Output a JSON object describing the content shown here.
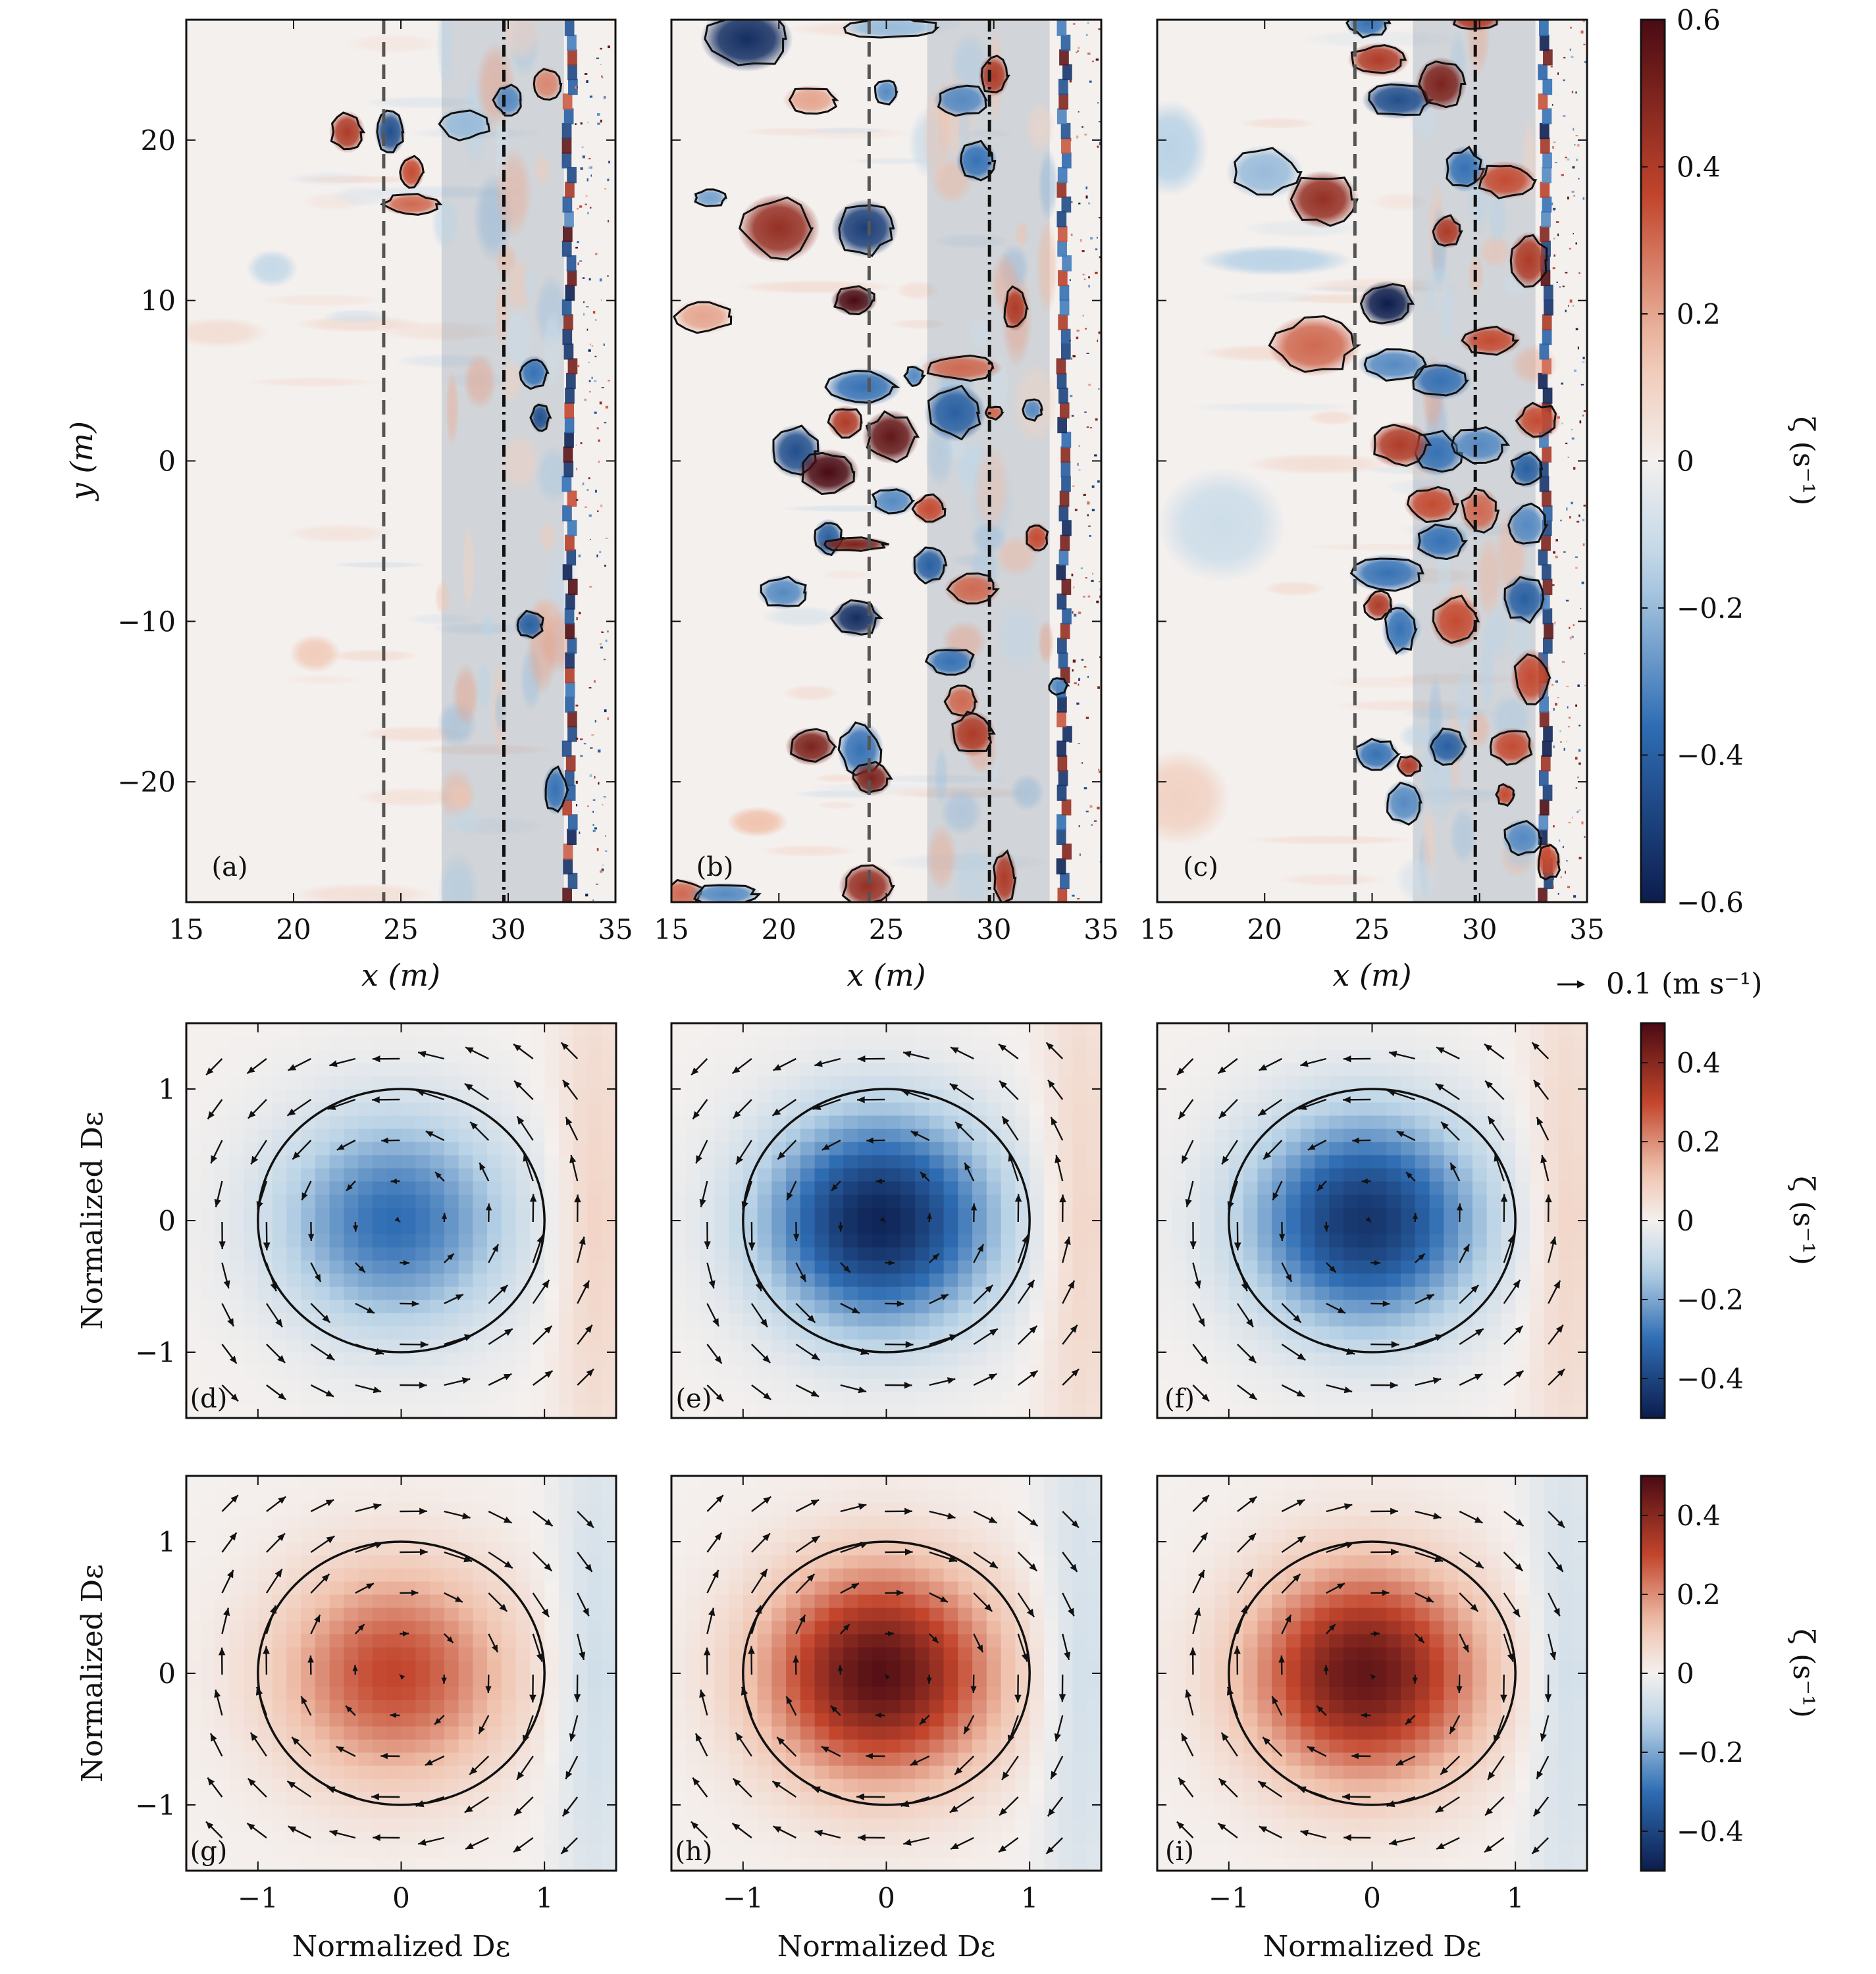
{
  "colors": {
    "neg_dark": "#0c1d4d",
    "neg_mid": "#2f6db3",
    "neg_light": "#b9d3e6",
    "zero": "#f4f0ee",
    "pos_light": "#f0c3ae",
    "pos_mid": "#c2452c",
    "pos_dark": "#4a0b13",
    "contour": "#111111",
    "dashed_line": "#555555",
    "surfzone_shade": "rgba(120,140,160,0.28)"
  },
  "chart_data": [
    {
      "type": "heatmap",
      "panel": "(a)",
      "xlabel": "x (m)",
      "ylabel": "y (m)",
      "xlim": [
        15,
        35
      ],
      "ylim": [
        -27.5,
        27.5
      ],
      "xticks": [
        "15",
        "20",
        "25",
        "30",
        "35"
      ],
      "yticks": [
        "−20",
        "−10",
        "0",
        "10",
        "20"
      ],
      "vertical_lines": {
        "dashed_x": 24.2,
        "dashdot_x": 29.8
      },
      "shaded_x_range": [
        26.9,
        32.6
      ],
      "eddies": [
        [
          22.5,
          20.5,
          0.7,
          1.1,
          0.4
        ],
        [
          24.5,
          20.5,
          0.6,
          1.2,
          -0.45
        ],
        [
          25.5,
          18,
          0.5,
          0.9,
          0.35
        ],
        [
          25.5,
          16,
          1.2,
          0.6,
          0.3
        ],
        [
          28,
          21,
          1.1,
          0.9,
          -0.2
        ],
        [
          30,
          22.5,
          0.6,
          0.9,
          -0.3
        ],
        [
          31.8,
          23.5,
          0.6,
          0.9,
          0.25
        ],
        [
          31.2,
          5.5,
          0.6,
          0.9,
          -0.35
        ],
        [
          31.5,
          2.7,
          0.4,
          0.8,
          -0.45
        ],
        [
          31,
          -10.2,
          0.6,
          0.8,
          -0.4
        ],
        [
          32.2,
          -20.5,
          0.5,
          1.3,
          -0.35
        ],
        [
          19,
          12,
          1,
          1,
          -0.12
        ],
        [
          21,
          -12,
          1,
          1,
          0.12
        ],
        [
          16.5,
          8,
          2,
          0.8,
          0.06
        ]
      ]
    },
    {
      "type": "heatmap",
      "panel": "(b)",
      "xlabel": "x (m)",
      "ylabel": "",
      "xlim": [
        15,
        35
      ],
      "ylim": [
        -27.5,
        27.5
      ],
      "xticks": [
        "15",
        "20",
        "25",
        "30",
        "35"
      ],
      "yticks": [],
      "vertical_lines": {
        "dashed_x": 24.2,
        "dashdot_x": 29.8
      },
      "shaded_x_range": [
        26.9,
        32.6
      ],
      "eddies": [
        [
          18.5,
          26.3,
          1.8,
          1.7,
          -0.55
        ],
        [
          16.5,
          9,
          1.2,
          0.9,
          0.2
        ],
        [
          16.8,
          16.4,
          0.7,
          0.5,
          -0.25
        ],
        [
          20,
          14.5,
          1.6,
          1.8,
          0.45
        ],
        [
          24,
          14.5,
          1.3,
          1.5,
          -0.5
        ],
        [
          23.5,
          10,
          0.9,
          0.8,
          0.6
        ],
        [
          20.8,
          0.6,
          1,
          1.4,
          -0.45
        ],
        [
          22.3,
          -0.7,
          1.2,
          1.2,
          0.6
        ],
        [
          23.9,
          4.6,
          1.5,
          1,
          -0.35
        ],
        [
          23.1,
          2.4,
          0.7,
          0.9,
          0.4
        ],
        [
          25.2,
          1.5,
          1.1,
          1.4,
          0.55
        ],
        [
          28.2,
          3,
          1.2,
          1.5,
          -0.4
        ],
        [
          26.3,
          5.3,
          0.4,
          0.6,
          -0.3
        ],
        [
          28.5,
          5.8,
          1.6,
          0.7,
          0.3
        ],
        [
          23.6,
          -9.8,
          1,
          1,
          -0.55
        ],
        [
          21.5,
          -17.8,
          1,
          1,
          0.5
        ],
        [
          23.8,
          -18,
          0.9,
          1.5,
          -0.35
        ],
        [
          20.2,
          -8.2,
          1,
          0.9,
          -0.3
        ],
        [
          22.3,
          -4.8,
          0.6,
          1,
          -0.4
        ],
        [
          23.5,
          -5.2,
          1.4,
          0.4,
          0.5
        ],
        [
          25.3,
          -2.5,
          0.9,
          0.8,
          -0.3
        ],
        [
          27,
          -3,
          0.7,
          0.8,
          0.35
        ],
        [
          27,
          -6.5,
          0.7,
          1,
          -0.4
        ],
        [
          29,
          -8,
          1.1,
          0.9,
          0.3
        ],
        [
          28,
          -12.5,
          1,
          0.8,
          -0.35
        ],
        [
          28.5,
          -15,
          0.7,
          0.9,
          0.3
        ],
        [
          29,
          -17,
          0.9,
          1.2,
          0.4
        ],
        [
          24.3,
          -19.8,
          0.8,
          0.9,
          0.5
        ],
        [
          19,
          -22.5,
          1.2,
          0.8,
          0.15
        ],
        [
          24.1,
          -26.5,
          1.1,
          1.2,
          0.45
        ],
        [
          15.5,
          -27,
          0.9,
          0.8,
          0.3
        ],
        [
          17.5,
          -27,
          1.4,
          0.6,
          -0.3
        ],
        [
          30.5,
          -26,
          0.5,
          1.5,
          0.4
        ],
        [
          28.5,
          22.5,
          1.1,
          0.9,
          -0.3
        ],
        [
          30,
          24,
          0.6,
          1.1,
          0.4
        ],
        [
          29.2,
          18.7,
          0.8,
          1.1,
          -0.35
        ],
        [
          25.2,
          27,
          2,
          0.6,
          -0.2
        ],
        [
          31,
          9.5,
          0.5,
          1.2,
          0.4
        ],
        [
          30,
          3,
          0.4,
          0.4,
          0.3
        ],
        [
          31.8,
          3.2,
          0.4,
          0.6,
          -0.3
        ],
        [
          32,
          -4.8,
          0.5,
          0.8,
          0.35
        ],
        [
          33,
          -14,
          0.4,
          0.5,
          -0.3
        ],
        [
          21.5,
          22.5,
          1.1,
          0.8,
          0.2
        ],
        [
          25,
          23,
          0.5,
          0.7,
          -0.3
        ]
      ]
    },
    {
      "type": "heatmap",
      "panel": "(c)",
      "xlabel": "x (m)",
      "ylabel": "",
      "xlim": [
        15,
        35
      ],
      "ylim": [
        -27.5,
        27.5
      ],
      "xticks": [
        "15",
        "20",
        "25",
        "30",
        "35"
      ],
      "yticks": [],
      "vertical_lines": {
        "dashed_x": 24.2,
        "dashdot_x": 29.8
      },
      "shaded_x_range": [
        26.9,
        32.6
      ],
      "eddies": [
        [
          15.6,
          19.5,
          1.5,
          2.5,
          -0.15
        ],
        [
          22.7,
          16.3,
          1.4,
          1.5,
          0.45
        ],
        [
          20.5,
          12.5,
          3,
          0.8,
          -0.15
        ],
        [
          22.3,
          7.2,
          1.8,
          1.6,
          0.3
        ],
        [
          20,
          18,
          1.5,
          1.4,
          -0.2
        ],
        [
          25.7,
          9.8,
          1.1,
          1.2,
          -0.6
        ],
        [
          26,
          6,
          1.4,
          0.9,
          -0.3
        ],
        [
          25.3,
          25,
          1.2,
          0.9,
          0.4
        ],
        [
          26.2,
          22.5,
          1.4,
          1,
          -0.45
        ],
        [
          28.2,
          23.5,
          1,
          1.4,
          0.5
        ],
        [
          24.8,
          27.3,
          0.9,
          0.8,
          -0.35
        ],
        [
          29.8,
          27.5,
          1,
          0.6,
          0.4
        ],
        [
          29.3,
          18.2,
          0.8,
          1.2,
          -0.35
        ],
        [
          31.2,
          17.5,
          1.2,
          1,
          0.35
        ],
        [
          28.5,
          14.3,
          0.6,
          0.9,
          0.4
        ],
        [
          30.5,
          7.5,
          1.2,
          0.8,
          0.35
        ],
        [
          28.2,
          5,
          1.2,
          1,
          -0.35
        ],
        [
          32.3,
          12.5,
          0.8,
          1.5,
          0.4
        ],
        [
          28,
          0.5,
          1.1,
          1.2,
          -0.35
        ],
        [
          26.3,
          1,
          1.2,
          1.2,
          0.4
        ],
        [
          30,
          1,
          1.2,
          1,
          -0.3
        ],
        [
          32.7,
          2.5,
          0.9,
          1,
          0.35
        ],
        [
          32.2,
          -0.5,
          0.7,
          1,
          -0.4
        ],
        [
          27.8,
          -2.7,
          1.1,
          1,
          0.35
        ],
        [
          28.2,
          -5,
          1.1,
          1,
          -0.35
        ],
        [
          30,
          -3.1,
          0.8,
          1.2,
          0.3
        ],
        [
          32.2,
          -4,
          0.8,
          1.2,
          -0.3
        ],
        [
          25.7,
          -7,
          1.5,
          1,
          -0.35
        ],
        [
          25.3,
          -9,
          0.6,
          0.8,
          0.4
        ],
        [
          26.3,
          -10.5,
          0.7,
          1.4,
          -0.35
        ],
        [
          28.9,
          -10,
          1,
          1.4,
          0.35
        ],
        [
          32.1,
          -8.6,
          0.9,
          1.3,
          -0.4
        ],
        [
          32.4,
          -13.5,
          0.8,
          1.5,
          0.35
        ],
        [
          31.5,
          -17.8,
          0.9,
          1,
          0.35
        ],
        [
          25.2,
          -18.3,
          0.9,
          0.9,
          -0.35
        ],
        [
          26.7,
          -19,
          0.5,
          0.6,
          0.4
        ],
        [
          28.5,
          -17.8,
          0.8,
          1,
          -0.4
        ],
        [
          26.5,
          -21.3,
          0.8,
          1.2,
          -0.3
        ],
        [
          32,
          -23.5,
          0.8,
          1,
          -0.3
        ],
        [
          31.2,
          -20.8,
          0.4,
          0.6,
          0.35
        ],
        [
          33.2,
          -25,
          0.5,
          1,
          0.35
        ],
        [
          16,
          -21,
          2,
          2.5,
          0.1
        ],
        [
          18,
          -4,
          2.5,
          3,
          -0.1
        ]
      ]
    },
    {
      "type": "heatmap",
      "panel": "(d)",
      "sign": -1,
      "peak": -0.3,
      "xlabel": "",
      "ylabel": "Normalized Dε",
      "xlim": [
        -1.5,
        1.5
      ],
      "ylim": [
        -1.5,
        1.5
      ],
      "xticks": [],
      "yticks": [
        "−1",
        "0",
        "1"
      ],
      "circle_radius": 1
    },
    {
      "type": "heatmap",
      "panel": "(e)",
      "sign": -1,
      "peak": -0.48,
      "xlabel": "",
      "ylabel": "",
      "xlim": [
        -1.5,
        1.5
      ],
      "ylim": [
        -1.5,
        1.5
      ],
      "xticks": [],
      "yticks": [],
      "circle_radius": 1
    },
    {
      "type": "heatmap",
      "panel": "(f)",
      "sign": -1,
      "peak": -0.44,
      "xlabel": "",
      "ylabel": "",
      "xlim": [
        -1.5,
        1.5
      ],
      "ylim": [
        -1.5,
        1.5
      ],
      "xticks": [],
      "yticks": [],
      "circle_radius": 1
    },
    {
      "type": "heatmap",
      "panel": "(g)",
      "sign": 1,
      "peak": 0.3,
      "xlabel": "Normalized Dε",
      "ylabel": "Normalized Dε",
      "xlim": [
        -1.5,
        1.5
      ],
      "ylim": [
        -1.5,
        1.5
      ],
      "xticks": [
        "−1",
        "0",
        "1"
      ],
      "yticks": [
        "−1",
        "0",
        "1"
      ],
      "circle_radius": 1
    },
    {
      "type": "heatmap",
      "panel": "(h)",
      "sign": 1,
      "peak": 0.48,
      "xlabel": "Normalized Dε",
      "ylabel": "",
      "xlim": [
        -1.5,
        1.5
      ],
      "ylim": [
        -1.5,
        1.5
      ],
      "xticks": [
        "−1",
        "0",
        "1"
      ],
      "yticks": [],
      "circle_radius": 1
    },
    {
      "type": "heatmap",
      "panel": "(i)",
      "sign": 1,
      "peak": 0.46,
      "xlabel": "Normalized Dε",
      "ylabel": "",
      "xlim": [
        -1.5,
        1.5
      ],
      "ylim": [
        -1.5,
        1.5
      ],
      "xticks": [
        "−1",
        "0",
        "1"
      ],
      "yticks": [],
      "circle_radius": 1
    }
  ],
  "colorbars": [
    {
      "label": "ζ (s⁻¹)",
      "range": [
        -0.6,
        0.6
      ],
      "ticks": [
        "0.6",
        "0.4",
        "0.2",
        "0",
        "−0.2",
        "−0.4",
        "−0.6"
      ]
    },
    {
      "label": "ζ (s⁻¹)",
      "range": [
        -0.5,
        0.5
      ],
      "ticks": [
        "0.4",
        "0.2",
        "0",
        "−0.2",
        "−0.4"
      ]
    },
    {
      "label": "ζ (s⁻¹)",
      "range": [
        -0.5,
        0.5
      ],
      "ticks": [
        "0.4",
        "0.2",
        "0",
        "−0.2",
        "−0.4"
      ]
    }
  ],
  "quiver_key": {
    "label": "0.1 (m s⁻¹)",
    "arrow": "→"
  }
}
